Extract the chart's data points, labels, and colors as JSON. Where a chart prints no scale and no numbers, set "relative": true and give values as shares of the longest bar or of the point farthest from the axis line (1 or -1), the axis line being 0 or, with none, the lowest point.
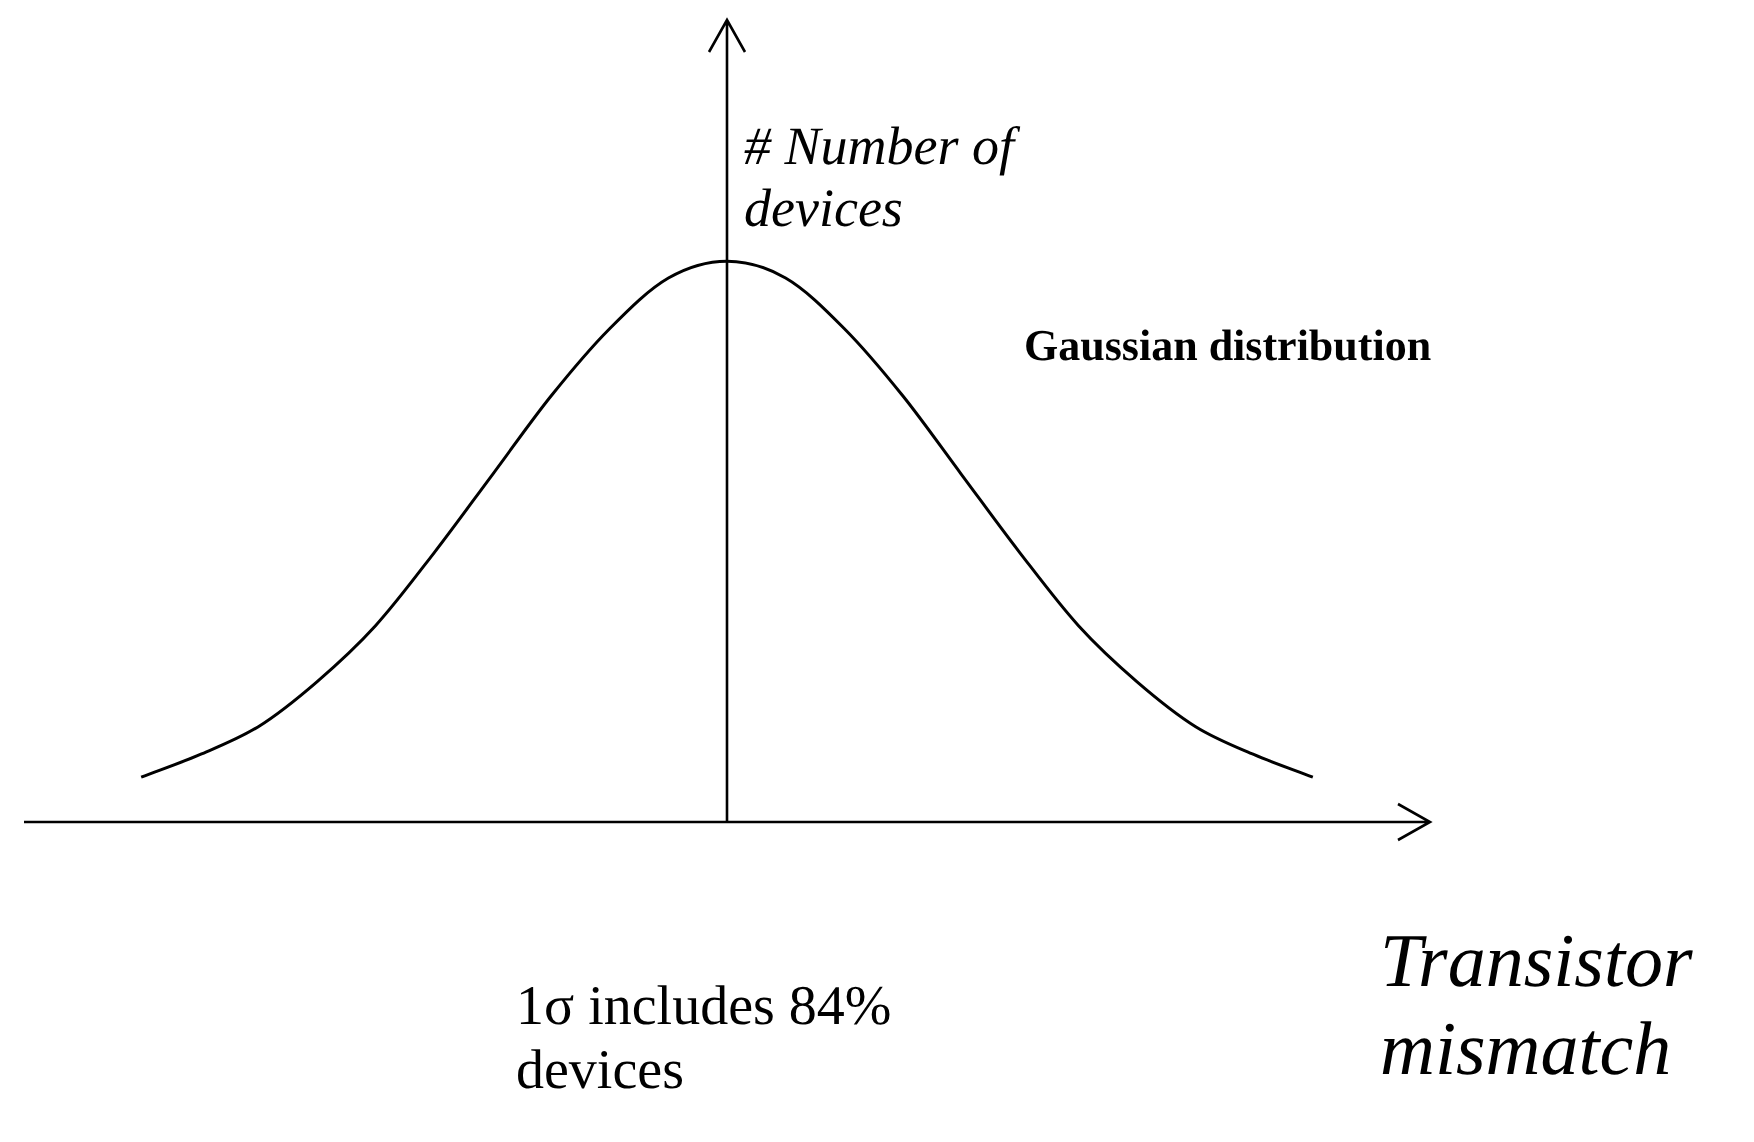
{
  "chart_data": {
    "type": "line",
    "relative": true,
    "xlabel": "Transistor mismatch",
    "ylabel": "# Number of devices",
    "annotations": [
      "Gaussian distribution",
      "1σ includes 84% devices"
    ],
    "categories": [
      null,
      null,
      null,
      null,
      null,
      null,
      null,
      null,
      null,
      null,
      null,
      null,
      null,
      null,
      null,
      null,
      null,
      null,
      null,
      null,
      null,
      null,
      null,
      null,
      null
    ],
    "series": [
      {
        "color": "#000000",
        "values": [
          null,
          null,
          0.08,
          0.12,
          0.17,
          0.25,
          0.35,
          0.48,
          0.62,
          0.76,
          0.88,
          0.97,
          1,
          0.97,
          0.88,
          0.76,
          0.62,
          0.48,
          0.35,
          0.25,
          0.17,
          0.12,
          0.08,
          null,
          null
        ]
      }
    ],
    "legend": false
  }
}
